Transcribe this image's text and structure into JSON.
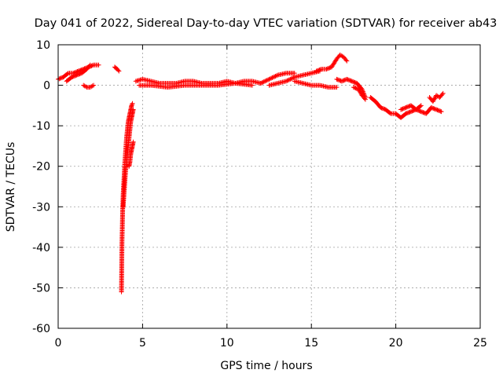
{
  "chart_data": {
    "type": "scatter",
    "title": "Day 041 of 2022, Sidereal Day-to-day VTEC variation (SDTVAR) for receiver ab43",
    "xlabel": "GPS time / hours",
    "ylabel": "SDTVAR / TECUs",
    "xlim": [
      0,
      25
    ],
    "ylim": [
      -60,
      10
    ],
    "xticks": [
      0,
      5,
      10,
      15,
      20,
      25
    ],
    "yticks": [
      10,
      0,
      -10,
      -20,
      -30,
      -40,
      -50,
      -60
    ],
    "xtick_labels": [
      "0",
      "5",
      "10",
      "15",
      "20",
      "25"
    ],
    "ytick_labels": [
      "10",
      "0",
      "-10",
      "-20",
      "-30",
      "-40",
      "-50",
      "-60"
    ],
    "grid": true,
    "marker": "+",
    "series": [
      {
        "name": "SDTVAR",
        "color": "#ff0000",
        "segments": [
          {
            "x": [
              0.0,
              0.3,
              0.6,
              0.9,
              1.2,
              1.5,
              1.8,
              2.1,
              2.4
            ],
            "y": [
              1.5,
              2.0,
              3.0,
              3.0,
              3.5,
              4.0,
              4.5,
              5.0,
              5.0
            ]
          },
          {
            "x": [
              0.5,
              0.8,
              1.1,
              1.4,
              1.7,
              1.9
            ],
            "y": [
              1.0,
              2.0,
              2.5,
              3.0,
              4.0,
              5.0
            ]
          },
          {
            "x": [
              1.5,
              1.7,
              1.9,
              2.1
            ],
            "y": [
              0.0,
              -0.5,
              -0.5,
              0.0
            ]
          },
          {
            "x": [
              3.35,
              3.5,
              3.6
            ],
            "y": [
              4.5,
              4.0,
              3.5
            ]
          },
          {
            "x": [
              3.75,
              3.76,
              3.77,
              3.78,
              3.8,
              3.82,
              3.85,
              3.9,
              3.95,
              4.0,
              4.05,
              4.1,
              4.15,
              4.2,
              4.25,
              4.3,
              4.35,
              4.4
            ],
            "y": [
              -51,
              -47,
              -43,
              -39,
              -35,
              -31,
              -27,
              -23,
              -19,
              -16,
              -13,
              -11,
              -9,
              -8,
              -7,
              -6,
              -5,
              -4.5
            ]
          },
          {
            "x": [
              3.85,
              3.9,
              3.95,
              4.0,
              4.05,
              4.1,
              4.15,
              4.2,
              4.25,
              4.3,
              4.35,
              4.4,
              4.45
            ],
            "y": [
              -30,
              -27,
              -24,
              -21,
              -19,
              -17,
              -15,
              -13,
              -11,
              -9,
              -8,
              -7,
              -6
            ]
          },
          {
            "x": [
              4.2,
              4.25,
              4.3,
              4.35,
              4.4,
              4.45
            ],
            "y": [
              -20,
              -19,
              -17,
              -16,
              -15,
              -14
            ]
          },
          {
            "x": [
              4.6,
              5.0,
              5.5,
              6.0,
              6.5,
              7.0,
              7.5,
              8.0,
              8.5,
              9.0,
              9.5,
              10.0,
              10.5,
              11.0,
              11.5,
              12.0
            ],
            "y": [
              1.0,
              1.5,
              1.0,
              0.5,
              0.5,
              0.5,
              1.0,
              1.0,
              0.5,
              0.5,
              0.5,
              1.0,
              0.5,
              1.0,
              1.0,
              0.5
            ]
          },
          {
            "x": [
              4.8,
              5.5,
              6.5,
              7.5,
              8.5,
              9.5,
              10.5,
              11.5
            ],
            "y": [
              0.0,
              0.0,
              -0.5,
              0.0,
              0.0,
              0.0,
              0.5,
              0.0
            ]
          },
          {
            "x": [
              12.0,
              12.5,
              13.0,
              13.5,
              14.0
            ],
            "y": [
              0.5,
              1.5,
              2.5,
              3.0,
              3.0
            ]
          },
          {
            "x": [
              12.5,
              13.0,
              13.5,
              14.0,
              14.5,
              15.0,
              15.5
            ],
            "y": [
              0.0,
              0.5,
              1.0,
              2.0,
              2.5,
              3.0,
              3.5
            ]
          },
          {
            "x": [
              14.0,
              14.5,
              15.0,
              15.5,
              16.0,
              16.5
            ],
            "y": [
              1.0,
              0.5,
              0.0,
              0.0,
              -0.5,
              -0.5
            ]
          },
          {
            "x": [
              15.3,
              15.6,
              15.9,
              16.2,
              16.5,
              16.7,
              16.9,
              17.1
            ],
            "y": [
              3.5,
              4.0,
              4.0,
              4.5,
              6.5,
              7.5,
              7.0,
              6.0
            ]
          },
          {
            "x": [
              16.5,
              16.8,
              17.1,
              17.4,
              17.7,
              18.0,
              18.2
            ],
            "y": [
              1.5,
              1.0,
              1.5,
              1.0,
              0.5,
              -1.0,
              -3.0
            ]
          },
          {
            "x": [
              17.5,
              17.8,
              18.0,
              18.2
            ],
            "y": [
              -0.5,
              -1.0,
              -2.5,
              -3.5
            ]
          },
          {
            "x": [
              18.5,
              18.8,
              19.1,
              19.4,
              19.7,
              20.0,
              20.3,
              20.6,
              20.9,
              21.2,
              21.5
            ],
            "y": [
              -3.0,
              -4.0,
              -5.5,
              -6.0,
              -7.0,
              -7.0,
              -8.0,
              -7.0,
              -6.5,
              -6.0,
              -5.0
            ]
          },
          {
            "x": [
              20.3,
              20.6,
              20.9,
              21.2,
              21.5,
              21.8,
              22.1,
              22.4,
              22.7
            ],
            "y": [
              -6.0,
              -5.5,
              -5.0,
              -6.0,
              -6.5,
              -7.0,
              -5.5,
              -6.0,
              -6.5
            ]
          },
          {
            "x": [
              22.0,
              22.2,
              22.4,
              22.6,
              22.8
            ],
            "y": [
              -3.0,
              -4.0,
              -2.5,
              -3.0,
              -2.0
            ]
          }
        ]
      }
    ]
  }
}
